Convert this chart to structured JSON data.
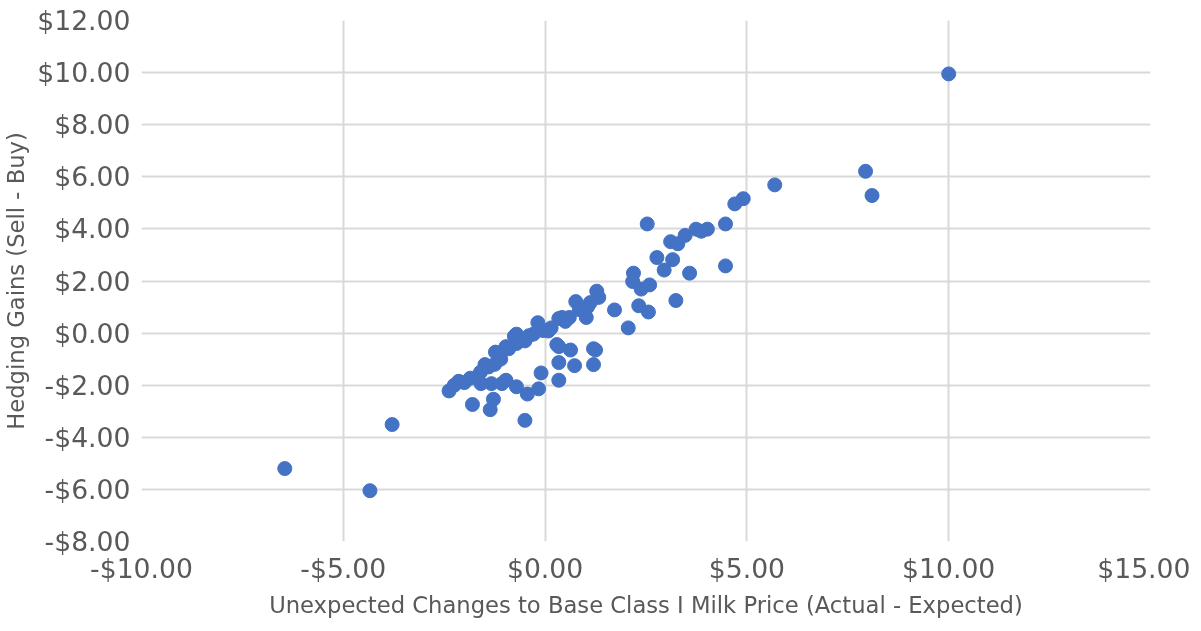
{
  "chart_data": {
    "type": "scatter",
    "xlabel": "Unexpected Changes to Base Class I Milk Price (Actual - Expected)",
    "ylabel": "Hedging Gains (Sell - Buy)",
    "x": [
      10.0,
      7.94,
      8.1,
      5.69,
      4.91,
      4.7,
      4.47,
      4.47,
      2.53,
      -6.45,
      -4.34,
      -3.79,
      -0.5,
      3.11,
      3.29,
      3.47,
      3.74,
      4.02,
      3.87,
      2.77,
      3.16,
      2.95,
      3.58,
      2.19,
      2.17,
      2.38,
      2.59,
      3.24,
      2.32,
      2.56,
      1.72,
      2.06,
      1.28,
      1.33,
      0.76,
      1.02,
      0.42,
      1.2,
      0.63,
      0.29,
      -0.18,
      -0.71,
      0.34,
      1.25,
      1.2,
      0.73,
      0.34,
      -0.1,
      0.34,
      -0.16,
      -0.44,
      -1.28,
      -1.36,
      -1.8,
      -2.38,
      -2.14,
      -1.85,
      -1.49,
      -0.71,
      -1.07,
      -0.71,
      -0.29,
      0.08,
      0.34,
      0.6,
      1.12,
      -0.97,
      -1.23,
      -0.97,
      -1.33,
      -1.59,
      -0.76,
      -2.25,
      -2.0,
      -1.6,
      -1.4,
      -1.1,
      -0.9,
      -0.5,
      -0.4,
      0.15,
      0.5,
      0.85,
      1.05,
      -1.25,
      -0.05
    ],
    "values": [
      9.95,
      6.21,
      5.28,
      5.69,
      5.16,
      4.96,
      4.19,
      2.58,
      4.19,
      -5.2,
      -6.05,
      -3.51,
      -3.35,
      3.51,
      3.43,
      3.75,
      3.99,
      3.99,
      3.91,
      2.9,
      2.82,
      2.42,
      2.3,
      2.3,
      1.98,
      1.69,
      1.85,
      1.25,
      1.05,
      0.81,
      0.89,
      0.2,
      1.61,
      1.37,
      1.21,
      0.6,
      0.6,
      -0.6,
      -0.65,
      -0.44,
      0.4,
      -0.04,
      -0.52,
      -0.65,
      -1.21,
      -1.25,
      -1.13,
      -1.53,
      -1.81,
      -2.14,
      -2.34,
      -2.54,
      -2.94,
      -2.74,
      -2.22,
      -1.85,
      -1.73,
      -1.21,
      -2.06,
      -1.94,
      -0.4,
      -0.04,
      0.08,
      0.56,
      0.6,
      1.17,
      -0.52,
      -0.73,
      -1.81,
      -1.94,
      -1.94,
      -0.12,
      -2.0,
      -1.9,
      -1.5,
      -1.3,
      -1.0,
      -0.6,
      -0.3,
      -0.1,
      0.2,
      0.45,
      0.9,
      1.0,
      -1.2,
      0.1
    ],
    "color": "#4472c4",
    "marker": "circle",
    "xlim": [
      -10,
      15
    ],
    "xticks": [
      {
        "value": -10,
        "label": "-$10.00"
      },
      {
        "value": -5,
        "label": "-$5.00"
      },
      {
        "value": 0,
        "label": "$0.00"
      },
      {
        "value": 5,
        "label": "$5.00"
      },
      {
        "value": 10,
        "label": "$10.00"
      },
      {
        "value": 15,
        "label": "$15.00"
      }
    ],
    "ylim": [
      -8,
      12
    ],
    "yticks": [
      {
        "value": -8,
        "label": "-$8.00"
      },
      {
        "value": -6,
        "label": "-$6.00"
      },
      {
        "value": -4,
        "label": "-$4.00"
      },
      {
        "value": -2,
        "label": "-$2.00"
      },
      {
        "value": 0,
        "label": "$0.00"
      },
      {
        "value": 2,
        "label": "$2.00"
      },
      {
        "value": 4,
        "label": "$4.00"
      },
      {
        "value": 6,
        "label": "$6.00"
      },
      {
        "value": 8,
        "label": "$8.00"
      },
      {
        "value": 10,
        "label": "$10.00"
      },
      {
        "value": 12,
        "label": "$12.00"
      }
    ],
    "grid": true
  }
}
